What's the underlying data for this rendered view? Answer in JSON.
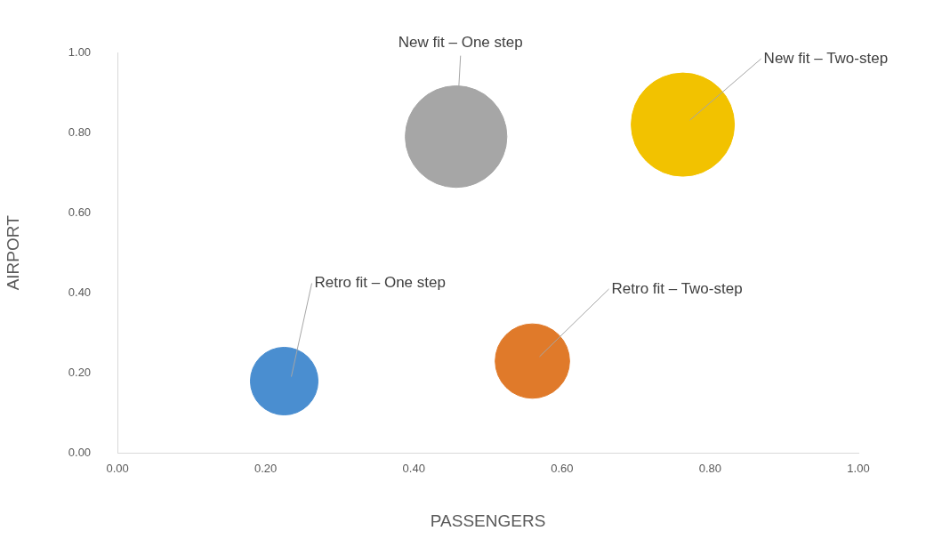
{
  "chart_data": {
    "type": "bubble",
    "xlabel": "PASSENGERS",
    "ylabel": "AIRPORT",
    "xlim": [
      0,
      1
    ],
    "xticks": [
      {
        "value": 0,
        "label": "0.00"
      },
      {
        "value": 0.2,
        "label": "0.20"
      },
      {
        "value": 0.4,
        "label": "0.40"
      },
      {
        "value": 0.6,
        "label": "0.60"
      },
      {
        "value": 0.8,
        "label": "0.80"
      },
      {
        "value": 1,
        "label": "1.00"
      }
    ],
    "ylim": [
      0,
      1
    ],
    "yticks": [
      {
        "value": 0,
        "label": "0.00"
      },
      {
        "value": 0.2,
        "label": "0.20"
      },
      {
        "value": 0.4,
        "label": "0.40"
      },
      {
        "value": 0.6,
        "label": "0.60"
      },
      {
        "value": 0.8,
        "label": "0.80"
      },
      {
        "value": 1,
        "label": "1.00"
      }
    ],
    "grid": false,
    "legend": false,
    "series": [
      {
        "name": "Retro fit – One step",
        "color": "#4a8ed0",
        "x": [
          0.225
        ],
        "values": [
          0.18
        ],
        "sizes": [
          0.43
        ]
      },
      {
        "name": "Retro fit – Two-step",
        "color": "#e07a2a",
        "x": [
          0.56
        ],
        "values": [
          0.23
        ],
        "sizes": [
          0.52
        ]
      },
      {
        "name": "New fit – One step",
        "color": "#a6a6a6",
        "x": [
          0.457
        ],
        "values": [
          0.79
        ],
        "sizes": [
          0.97
        ]
      },
      {
        "name": "New fit – Two-step",
        "color": "#f2c200",
        "x": [
          0.763
        ],
        "values": [
          0.82
        ],
        "sizes": [
          1
        ]
      }
    ]
  }
}
